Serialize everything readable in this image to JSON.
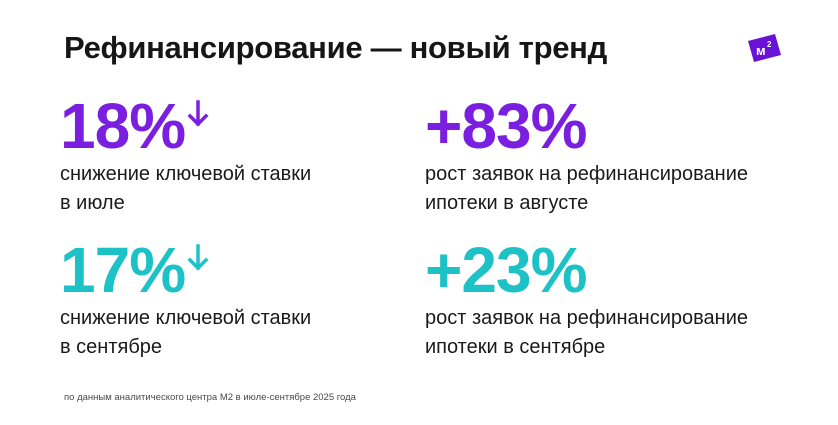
{
  "title": "Рефинансирование — новый тренд",
  "logo": {
    "text": "м²",
    "color": "#6a11d8"
  },
  "colors": {
    "purple": "#7a1fe0",
    "teal": "#1cc2c5"
  },
  "stats": [
    {
      "value": "18%",
      "arrow": "down-arrow-icon",
      "line1": "снижение ключевой ставки",
      "line2": "в июле"
    },
    {
      "value": "+83%",
      "line1": "рост заявок на рефинансирование",
      "line2": "ипотеки в августе"
    },
    {
      "value": "17%",
      "arrow": "down-arrow-icon",
      "line1": "снижение ключевой ставки",
      "line2": "в сентябре"
    },
    {
      "value": "+23%",
      "line1": "рост заявок на рефинансирование",
      "line2": "ипотеки в сентябре"
    }
  ],
  "footnote": "по данным аналитического центра М2 в июле-сентябре 2025 года"
}
